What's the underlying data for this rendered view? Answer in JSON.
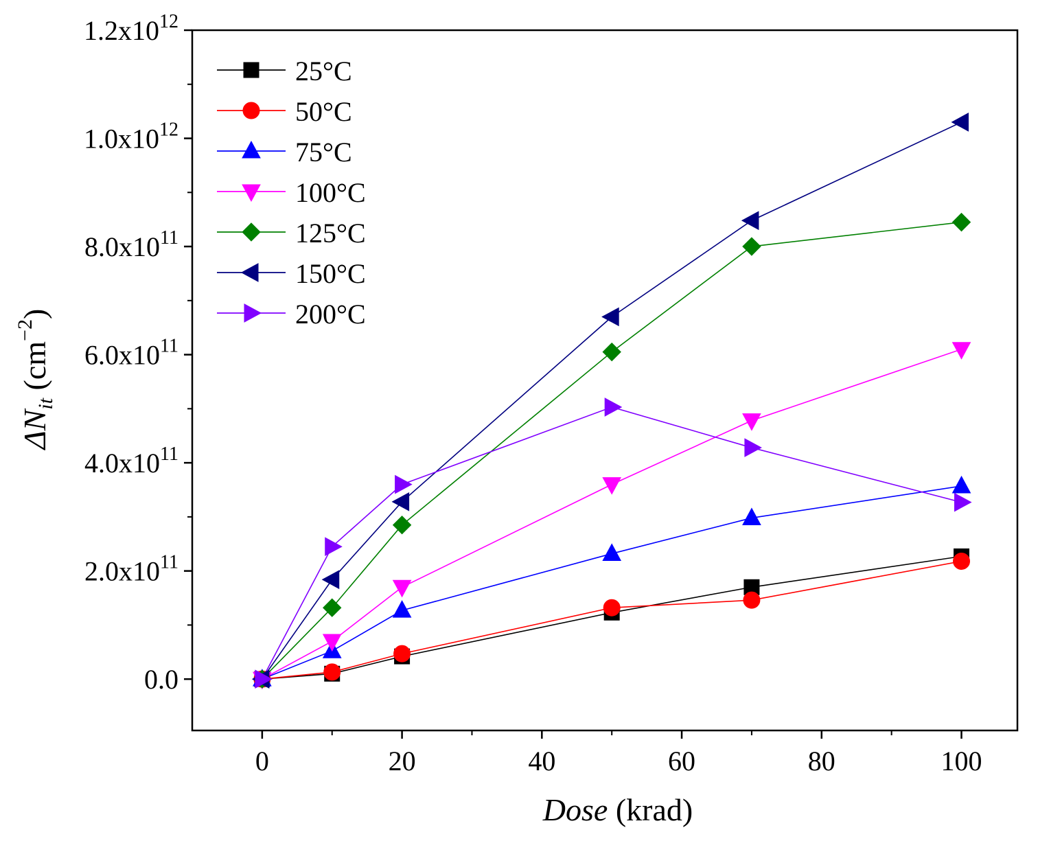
{
  "chart_data": {
    "type": "line",
    "title": "",
    "xlabel": {
      "italic": "Dose",
      "normal": " (krad)"
    },
    "ylabel": {
      "prefix": "ΔN",
      "sub": "it",
      "unit": " (cm",
      "sup": "−2",
      "close": ")"
    },
    "xlim": [
      -10,
      108
    ],
    "ylim": [
      -95000000000.0,
      1200000000000.0
    ],
    "xticks": [
      {
        "value": 0,
        "label": "0"
      },
      {
        "value": 20,
        "label": "20"
      },
      {
        "value": 40,
        "label": "40"
      },
      {
        "value": 60,
        "label": "60"
      },
      {
        "value": 80,
        "label": "80"
      },
      {
        "value": 100,
        "label": "100"
      }
    ],
    "yticks": [
      {
        "value": 0,
        "mant": "0.0",
        "exp": ""
      },
      {
        "value": 200000000000.0,
        "mant": "2.0x10",
        "exp": "11"
      },
      {
        "value": 400000000000.0,
        "mant": "4.0x10",
        "exp": "11"
      },
      {
        "value": 600000000000.0,
        "mant": "6.0x10",
        "exp": "11"
      },
      {
        "value": 800000000000.0,
        "mant": "8.0x10",
        "exp": "11"
      },
      {
        "value": 1000000000000.0,
        "mant": "1.0x10",
        "exp": "12"
      },
      {
        "value": 1200000000000.0,
        "mant": "1.2x10",
        "exp": "12"
      }
    ],
    "legend_position": "top-left",
    "x": [
      0,
      10,
      20,
      50,
      70,
      100
    ],
    "series": [
      {
        "name": "25°C",
        "color": "#000000",
        "line_color": "#000000",
        "marker": "square",
        "values": [
          0,
          10000000000.0,
          42000000000.0,
          123000000000.0,
          170000000000.0,
          227000000000.0
        ]
      },
      {
        "name": "50°C",
        "color": "#ff0000",
        "line_color": "#ff0000",
        "marker": "circle",
        "values": [
          0,
          13000000000.0,
          47000000000.0,
          132000000000.0,
          146000000000.0,
          218000000000.0
        ]
      },
      {
        "name": "75°C",
        "color": "#0000ff",
        "line_color": "#0000ff",
        "marker": "triangle-up",
        "values": [
          0,
          52000000000.0,
          127000000000.0,
          232000000000.0,
          298000000000.0,
          357000000000.0
        ]
      },
      {
        "name": "100°C",
        "color": "#ff00ff",
        "line_color": "#ff00ff",
        "marker": "triangle-down",
        "values": [
          0,
          70000000000.0,
          170000000000.0,
          360000000000.0,
          478000000000.0,
          610000000000.0
        ]
      },
      {
        "name": "125°C",
        "color": "#008000",
        "line_color": "#008000",
        "marker": "diamond",
        "values": [
          0,
          132000000000.0,
          285000000000.0,
          605000000000.0,
          800000000000.0,
          845000000000.0
        ]
      },
      {
        "name": "150°C",
        "color": "#000080",
        "line_color": "#000080",
        "marker": "triangle-left",
        "values": [
          0,
          184000000000.0,
          328000000000.0,
          670000000000.0,
          848000000000.0,
          1030000000000.0
        ]
      },
      {
        "name": "200°C",
        "color": "#8000ff",
        "line_color": "#8000ff",
        "marker": "triangle-right",
        "values": [
          0,
          245000000000.0,
          360000000000.0,
          503000000000.0,
          428000000000.0,
          327000000000.0
        ]
      }
    ]
  }
}
